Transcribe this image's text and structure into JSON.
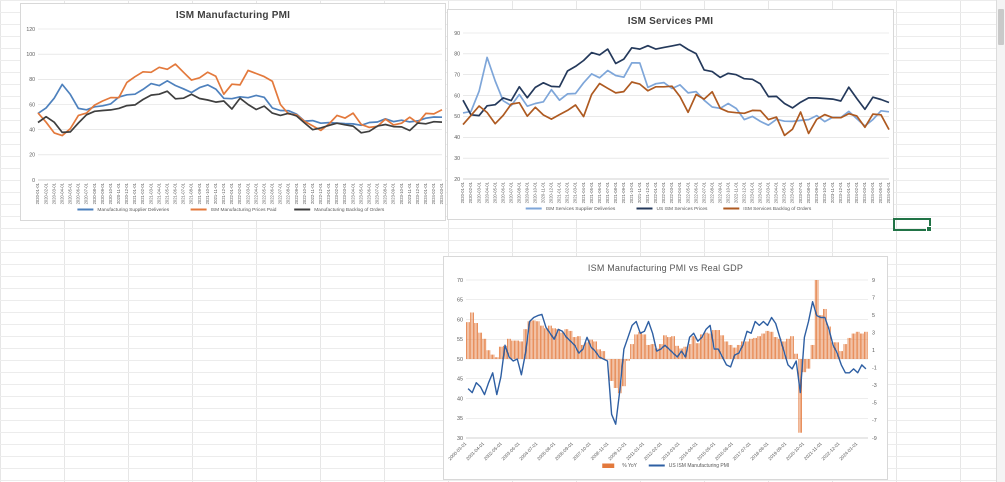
{
  "sheet": {
    "gridline_color": "#ECECEC",
    "selection_color": "#217346"
  },
  "chart_data": [
    {
      "id": "chart1",
      "type": "line",
      "title": "ISM Manufacturing PMI",
      "y_axis": {
        "min": 0,
        "max": 120,
        "step": 20
      },
      "grid": true,
      "legend_position": "bottom",
      "categories": [
        "2020-01-01",
        "2020-02-01",
        "2020-03-01",
        "2020-04-01",
        "2020-05-01",
        "2020-06-01",
        "2020-07-01",
        "2020-08-01",
        "2020-09-01",
        "2020-10-01",
        "2020-11-01",
        "2020-12-01",
        "2021-01-01",
        "2021-02-01",
        "2021-03-01",
        "2021-04-01",
        "2021-05-01",
        "2021-06-01",
        "2021-07-01",
        "2021-08-01",
        "2021-09-01",
        "2021-10-01",
        "2021-11-01",
        "2021-12-01",
        "2022-01-01",
        "2022-02-01",
        "2022-03-01",
        "2022-04-01",
        "2022-05-01",
        "2022-06-01",
        "2022-07-01",
        "2022-08-01",
        "2022-09-01",
        "2022-10-01",
        "2022-11-01",
        "2022-12-01",
        "2023-01-01",
        "2023-02-01",
        "2023-03-01",
        "2023-04-01",
        "2023-05-01",
        "2023-06-01",
        "2023-07-01",
        "2023-08-01",
        "2023-09-01",
        "2023-10-01",
        "2023-11-01",
        "2023-12-01",
        "2024-01-01",
        "2024-02-01",
        "2024-03-01"
      ],
      "series": [
        {
          "name": "Manufacturing Supplier Deliveries",
          "color": "#4E81BD",
          "values": [
            52.9,
            57.3,
            65,
            76,
            68,
            56.9,
            55.8,
            58.2,
            59,
            60.5,
            65.9,
            67.7,
            68.2,
            72,
            76.6,
            75,
            78.8,
            75.1,
            72.5,
            69.5,
            73.4,
            75.6,
            72.2,
            64.9,
            64.6,
            66.1,
            65.4,
            67.2,
            65.7,
            57.3,
            55.2,
            55.1,
            52.4,
            46.8,
            47.2,
            45.1,
            45.6,
            45.2,
            44.8,
            44.6,
            43.5,
            45.7,
            46.1,
            48.6,
            46.4,
            47.5,
            46.2,
            47,
            49.1,
            50.1,
            49.9
          ]
        },
        {
          "name": "ISM Manufacturing Prices Paid",
          "color": "#E3793C",
          "values": [
            53.3,
            45.9,
            37.4,
            35.3,
            40.8,
            51.3,
            53.2,
            59.5,
            62.8,
            65.5,
            65.4,
            77.6,
            82.1,
            86,
            85.6,
            89.6,
            88,
            92.1,
            85.7,
            79.4,
            81.2,
            85.7,
            82.4,
            68.2,
            76.1,
            75.6,
            87.1,
            84.6,
            82.2,
            78.5,
            60,
            52.5,
            51.7,
            46.6,
            43,
            39.4,
            44.5,
            51.3,
            49.2,
            53.2,
            44.2,
            41.8,
            42.6,
            48.4,
            43.8,
            45.1,
            49.9,
            45.2,
            52.9,
            52.5,
            55.8
          ]
        },
        {
          "name": "Manufacturing Backlog of Orders",
          "color": "#3F3F3F",
          "values": [
            45.7,
            50.3,
            45.9,
            37.8,
            38.2,
            45.3,
            51.8,
            54.6,
            55.2,
            55.7,
            56.9,
            59.1,
            59.7,
            64,
            67.5,
            68.2,
            70.6,
            64.5,
            65,
            68.2,
            64.8,
            63.6,
            61.9,
            62.8,
            56.4,
            65,
            60,
            56,
            58.7,
            53.2,
            51.3,
            53,
            50.9,
            45.3,
            40,
            41.4,
            43.4,
            45.1,
            43.9,
            42.8,
            37.5,
            38.7,
            42.8,
            44.1,
            42.4,
            42.2,
            39.3,
            45.3,
            44.7,
            46.3,
            46
          ]
        }
      ]
    },
    {
      "id": "chart2",
      "type": "line",
      "title": "ISM Services PMI",
      "y_axis": {
        "min": 20,
        "max": 90,
        "step": 10
      },
      "grid": true,
      "legend_position": "bottom",
      "categories": [
        "2020-01-01",
        "2020-02-01",
        "2020-03-01",
        "2020-04-01",
        "2020-05-01",
        "2020-06-01",
        "2020-07-01",
        "2020-08-01",
        "2020-09-01",
        "2020-10-01",
        "2020-11-01",
        "2020-12-01",
        "2021-01-01",
        "2021-02-01",
        "2021-03-01",
        "2021-04-01",
        "2021-05-01",
        "2021-06-01",
        "2021-07-01",
        "2021-08-01",
        "2021-09-01",
        "2021-10-01",
        "2021-11-01",
        "2021-12-01",
        "2022-01-01",
        "2022-02-01",
        "2022-03-01",
        "2022-04-01",
        "2022-05-01",
        "2022-06-01",
        "2022-07-01",
        "2022-08-01",
        "2022-09-01",
        "2022-10-01",
        "2022-11-01",
        "2022-12-01",
        "2023-01-01",
        "2023-02-01",
        "2023-03-01",
        "2023-04-01",
        "2023-05-01",
        "2023-06-01",
        "2023-07-01",
        "2023-08-01",
        "2023-09-01",
        "2023-10-01",
        "2023-11-01",
        "2023-12-01",
        "2024-01-01",
        "2024-02-01",
        "2024-03-01",
        "2024-04-01",
        "2024-05-01",
        "2024-06-01"
      ],
      "series": [
        {
          "name": "ISM Services Supplier Deliveries",
          "color": "#7EA6D9",
          "values": [
            51.7,
            52.4,
            62.1,
            78.3,
            67,
            57.5,
            55.2,
            60.5,
            54.9,
            56.2,
            57,
            62.8,
            57.8,
            60.8,
            61,
            66.1,
            70.4,
            68.5,
            72,
            69.6,
            68.8,
            75.7,
            75.6,
            63.9,
            65.7,
            66.2,
            63.4,
            65.1,
            61.3,
            61.9,
            57.8,
            54.5,
            53.9,
            56.2,
            53.8,
            48.5,
            50,
            47.6,
            45.8,
            48.6,
            47.7,
            47.6,
            48.1,
            48.5,
            50.4,
            47.5,
            49.6,
            49.5,
            52.4,
            48.9,
            45.4,
            48.5,
            52.7,
            52.2
          ]
        },
        {
          "name": "US ISM Services Prices",
          "color": "#24395B",
          "values": [
            57.8,
            50.8,
            50.4,
            55.1,
            55.6,
            58.9,
            57.6,
            64.2,
            59,
            63.9,
            66.1,
            64.4,
            64.2,
            71.8,
            74,
            76.8,
            80.6,
            79.5,
            82.3,
            75.4,
            77.5,
            82.9,
            82.3,
            83.9,
            82.3,
            83.1,
            83.8,
            84.6,
            82.1,
            80.1,
            72.3,
            71.5,
            68.7,
            70.7,
            70,
            68.1,
            67.8,
            65.6,
            59.5,
            59.6,
            56.2,
            54.1,
            56.8,
            58.9,
            58.9,
            58.6,
            58.3,
            57.4,
            64,
            58.6,
            53.4,
            59.2,
            58.1,
            56.7
          ]
        },
        {
          "name": "ISM Services Backlog of Orders",
          "color": "#AE5A21",
          "values": [
            46.1,
            50.5,
            55,
            51.9,
            46.5,
            50.5,
            55.9,
            56.6,
            50.1,
            54.4,
            50.7,
            48.7,
            50.9,
            52.9,
            55.5,
            49.9,
            60.5,
            65.8,
            63.5,
            61.3,
            61.9,
            66.5,
            65.5,
            62.3,
            64.2,
            64.2,
            64.5,
            59.5,
            52,
            60.5,
            58.3,
            61.8,
            53.9,
            52.2,
            51.8,
            51.5,
            52.9,
            52.8,
            48.5,
            49.7,
            40.9,
            43.9,
            52.1,
            41.8,
            48.6,
            50.9,
            49.4,
            49.4,
            51.3,
            50.2,
            44.8,
            51.1,
            50.8,
            43.7
          ]
        }
      ]
    },
    {
      "id": "chart3",
      "type": "combo",
      "title": "ISM Manufacturing PMI vs Real GDP",
      "y_left": {
        "min": 30,
        "max": 70,
        "step": 5
      },
      "y_right": {
        "min": -9,
        "max": 9,
        "step": 2
      },
      "grid": true,
      "legend_position": "bottom",
      "x_tick_labels": [
        "2000-03-01",
        "2001-04-01",
        "2002-05-01",
        "2003-06-01",
        "2004-07-01",
        "2005-08-01",
        "2006-09-01",
        "2007-10-01",
        "2008-11-01",
        "2009-12-01",
        "2011-01-01",
        "2012-02-01",
        "2013-03-01",
        "2014-04-01",
        "2015-05-01",
        "2016-06-01",
        "2017-07-01",
        "2018-08-01",
        "2019-09-01",
        "2020-10-01",
        "2021-11-01",
        "2022-12-01",
        "2024-01-01"
      ],
      "bar_series": {
        "name": "% YoY",
        "color": "#E3793C",
        "axis": "right",
        "frequency": "quarterly_2000Q1_2024Q2",
        "values": [
          4.2,
          5.3,
          4.1,
          3.0,
          2.3,
          1.0,
          0.5,
          0.2,
          1.4,
          1.5,
          2.3,
          2.1,
          2.1,
          2.0,
          3.4,
          4.3,
          4.4,
          4.3,
          3.8,
          3.5,
          3.8,
          3.5,
          3.4,
          3.0,
          3.4,
          3.2,
          2.5,
          2.6,
          1.6,
          1.9,
          2.2,
          2.0,
          1.1,
          0.9,
          0.0,
          -2.5,
          -3.3,
          -3.9,
          -3.1,
          -0.2,
          1.7,
          2.8,
          3.1,
          2.8,
          1.6,
          1.7,
          1.2,
          1.7,
          2.7,
          2.5,
          2.6,
          1.5,
          1.2,
          1.4,
          1.7,
          2.6,
          1.8,
          2.8,
          3.0,
          2.9,
          3.3,
          3.3,
          2.7,
          2.0,
          1.6,
          1.3,
          1.6,
          2.0,
          2.0,
          2.3,
          2.4,
          2.6,
          2.9,
          3.2,
          3.1,
          2.5,
          2.3,
          2.0,
          2.3,
          2.6,
          0.6,
          -8.4,
          -1.5,
          -1.1,
          1.6,
          12.5,
          5.0,
          5.7,
          3.7,
          1.9,
          1.9,
          0.9,
          1.7,
          2.4,
          2.9,
          3.1,
          2.9,
          3.1
        ]
      },
      "line_series": {
        "name": "US ISM Manufacturing PMI",
        "color": "#2E5FA3",
        "axis": "left",
        "frequency": "quarterly_2000Q1_2024Q2",
        "values": [
          42.5,
          41.5,
          44.0,
          43.0,
          41.0,
          44.0,
          46.5,
          41.0,
          45.5,
          53.5,
          50.5,
          49.5,
          50.0,
          46.0,
          51.5,
          59.5,
          60.5,
          61.0,
          61.3,
          58.0,
          56.5,
          55.0,
          57.5,
          57.0,
          55.5,
          54.5,
          53.5,
          51.5,
          52.5,
          55.5,
          53.0,
          52.0,
          50.5,
          50.0,
          49.5,
          36.0,
          33.5,
          42.0,
          52.5,
          55.5,
          58.5,
          59.5,
          56.5,
          57.0,
          59.5,
          56.5,
          52.0,
          52.5,
          53.5,
          52.5,
          51.5,
          50.5,
          52.0,
          50.5,
          55.5,
          56.5,
          54.5,
          55.5,
          57.5,
          58.5,
          52.5,
          52.5,
          50.5,
          48.5,
          48.0,
          51.0,
          51.5,
          53.5,
          57.0,
          56.5,
          59.5,
          58.5,
          59.5,
          58.5,
          60.5,
          59.0,
          55.5,
          52.0,
          48.5,
          47.5,
          49.5,
          41.5,
          55.5,
          59.5,
          64.5,
          61.0,
          60.5,
          60.5,
          57.5,
          53.5,
          51.5,
          48.5,
          46.5,
          46.5,
          47.5,
          46.5,
          48.5,
          47.5
        ]
      }
    }
  ]
}
